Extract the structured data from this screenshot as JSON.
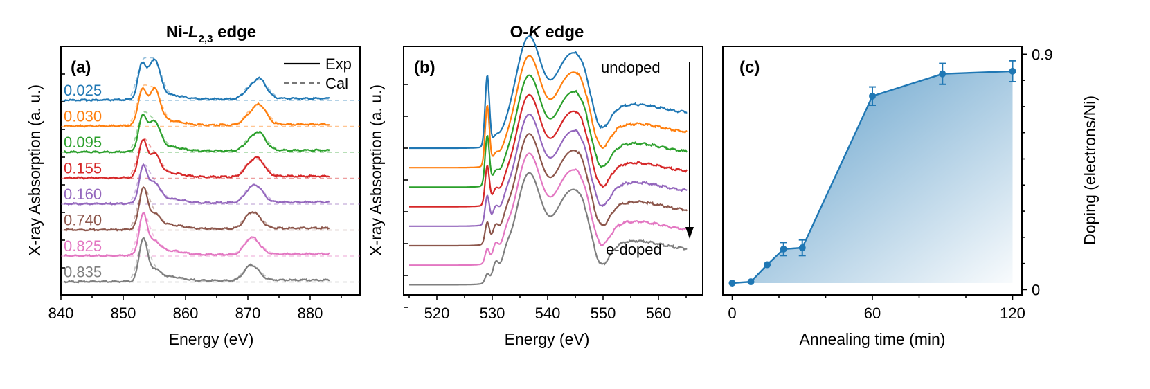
{
  "chart_data": [
    {
      "id": "a",
      "type": "line",
      "panel_label": "(a)",
      "title": "Ni-L2,3 edge",
      "title_parts": {
        "prefix": "Ni-",
        "italic": "L",
        "sub": "2,3",
        "suffix": " edge"
      },
      "xlabel": "Energy (eV)",
      "ylabel": "X-ray Asbsorption (a. u.)",
      "xlim": [
        840,
        888
      ],
      "xticks": [
        "840",
        "850",
        "860",
        "870",
        "880"
      ],
      "legend": {
        "position": "top-right",
        "entries": [
          {
            "label": "Exp",
            "style": "solid"
          },
          {
            "label": "Cal",
            "style": "dashed"
          }
        ]
      },
      "series": [
        {
          "name": "0.025",
          "color": "#1f77b4"
        },
        {
          "name": "0.030",
          "color": "#ff7f0e"
        },
        {
          "name": "0.095",
          "color": "#2ca02c"
        },
        {
          "name": "0.155",
          "color": "#d62728"
        },
        {
          "name": "0.160",
          "color": "#9467bd"
        },
        {
          "name": "0.740",
          "color": "#8c564b"
        },
        {
          "name": "0.825",
          "color": "#e377c2"
        },
        {
          "name": "0.835",
          "color": "#7f7f7f"
        }
      ],
      "peaks": [
        {
          "x": [
            853.0,
            855.0,
            871.8
          ],
          "y": [
            1.0,
            1.15,
            0.6
          ]
        },
        {
          "x": [
            853.0,
            855.0,
            871.8
          ],
          "y": [
            1.0,
            1.05,
            0.6
          ]
        },
        {
          "x": [
            853.1,
            855.0,
            871.7
          ],
          "y": [
            1.0,
            0.85,
            0.55
          ]
        },
        {
          "x": [
            853.1,
            855.0,
            871.5
          ],
          "y": [
            1.05,
            0.65,
            0.55
          ]
        },
        {
          "x": [
            853.2,
            855.0,
            871.3
          ],
          "y": [
            1.05,
            0.55,
            0.5
          ]
        },
        {
          "x": [
            853.2,
            855.0,
            871.0
          ],
          "y": [
            1.2,
            0.4,
            0.45
          ]
        },
        {
          "x": [
            853.2,
            855.0,
            870.9
          ],
          "y": [
            1.2,
            0.35,
            0.45
          ]
        },
        {
          "x": [
            853.2,
            855.0,
            870.8
          ],
          "y": [
            1.25,
            0.3,
            0.4
          ]
        }
      ]
    },
    {
      "id": "b",
      "type": "line",
      "panel_label": "(b)",
      "title": "O-K edge",
      "title_parts": {
        "prefix": "O-",
        "italic": "K",
        "sub": "",
        "suffix": " edge"
      },
      "xlabel": "Energy (eV)",
      "ylabel": "X-ray Asbsorption (a. u.)",
      "xlim": [
        514,
        568
      ],
      "xticks": [
        "520",
        "530",
        "540",
        "550",
        "560"
      ],
      "annotations": {
        "top": "undoped",
        "bottom": "e-doped"
      },
      "series": [
        {
          "color": "#1f77b4",
          "prepeak": 1.0
        },
        {
          "color": "#ff7f0e",
          "prepeak": 0.85
        },
        {
          "color": "#2ca02c",
          "prepeak": 0.7
        },
        {
          "color": "#d62728",
          "prepeak": 0.55
        },
        {
          "color": "#9467bd",
          "prepeak": 0.4
        },
        {
          "color": "#8c564b",
          "prepeak": 0.3
        },
        {
          "color": "#e377c2",
          "prepeak": 0.2
        },
        {
          "color": "#7f7f7f",
          "prepeak": 0.12
        }
      ]
    },
    {
      "id": "c",
      "type": "line",
      "panel_label": "(c)",
      "xlabel": "Annealing time (min)",
      "ylabel": "Doping (electrons/Ni)",
      "xlim": [
        -4,
        124
      ],
      "ylim": [
        -0.02,
        0.93
      ],
      "xticks": [
        0,
        60,
        120
      ],
      "yticks": [
        0,
        0.9
      ],
      "ytick_labels": [
        "0",
        "0.9"
      ],
      "color": "#1f77b4",
      "x": [
        0,
        8,
        15,
        22,
        30,
        60,
        90,
        120
      ],
      "y": [
        0.025,
        0.03,
        0.095,
        0.155,
        0.16,
        0.74,
        0.825,
        0.835
      ],
      "yerr": [
        0,
        0,
        0,
        0.025,
        0.03,
        0.035,
        0.04,
        0.04
      ]
    }
  ]
}
